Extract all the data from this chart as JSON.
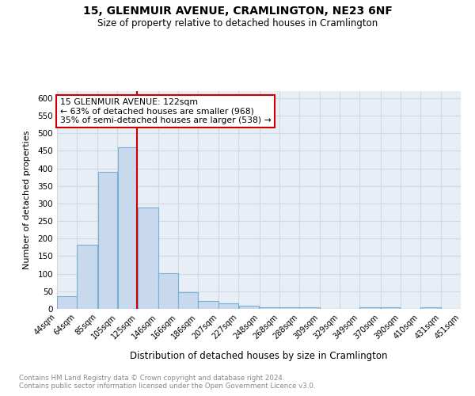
{
  "title": "15, GLENMUIR AVENUE, CRAMLINGTON, NE23 6NF",
  "subtitle": "Size of property relative to detached houses in Cramlington",
  "xlabel": "Distribution of detached houses by size in Cramlington",
  "ylabel": "Number of detached properties",
  "footnote1": "Contains HM Land Registry data © Crown copyright and database right 2024.",
  "footnote2": "Contains public sector information licensed under the Open Government Licence v3.0.",
  "annotation_line1": "15 GLENMUIR AVENUE: 122sqm",
  "annotation_line2": "← 63% of detached houses are smaller (968)",
  "annotation_line3": "35% of semi-detached houses are larger (538) →",
  "bar_edges": [
    44,
    64,
    85,
    105,
    125,
    146,
    166,
    186,
    207,
    227,
    248,
    268,
    288,
    309,
    329,
    349,
    370,
    390,
    410,
    431,
    451
  ],
  "bar_heights": [
    37,
    183,
    390,
    460,
    288,
    101,
    48,
    22,
    16,
    9,
    5,
    4,
    4,
    0,
    0,
    5,
    5,
    0,
    5,
    0,
    5
  ],
  "bar_color": "#c8d9ed",
  "bar_edge_color": "#7aafd4",
  "vline_color": "#cc0000",
  "vline_x": 125,
  "annotation_box_color": "#cc0000",
  "annotation_bg": "#ffffff",
  "ylim": [
    0,
    620
  ],
  "yticks": [
    0,
    50,
    100,
    150,
    200,
    250,
    300,
    350,
    400,
    450,
    500,
    550,
    600
  ],
  "grid_color": "#d0d8e4",
  "bg_color": "#e8eef5",
  "plot_bg": "#e8eef5",
  "fig_bg": "#ffffff"
}
